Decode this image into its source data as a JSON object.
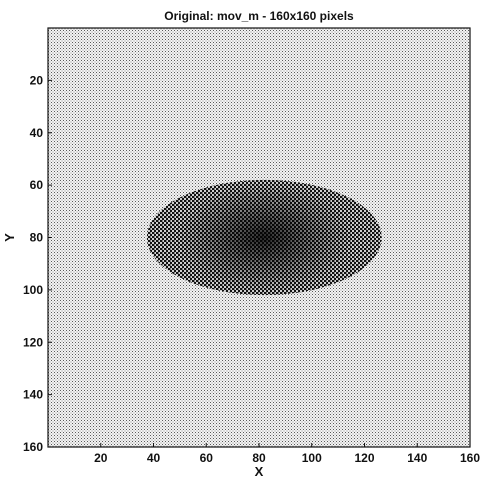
{
  "chart_data": {
    "type": "heatmap",
    "title": "Original: mov_m - 160x160 pixels",
    "xlabel": "X",
    "ylabel": "Y",
    "xlim": [
      0,
      160
    ],
    "ylim": [
      0,
      160
    ],
    "y_reversed": true,
    "xticks": [
      20,
      40,
      60,
      80,
      100,
      120,
      140,
      160
    ],
    "yticks": [
      20,
      40,
      60,
      80,
      100,
      120,
      140,
      160
    ],
    "colormap": "gray",
    "background_level": 0.2,
    "blob": {
      "center_x": 82,
      "center_y": 80,
      "extent_x": [
        33,
        122
      ],
      "extent_y": [
        58,
        102
      ],
      "peak_level": 0.85
    },
    "colors": {
      "ink": "#111111",
      "paper": "#ffffff"
    }
  }
}
